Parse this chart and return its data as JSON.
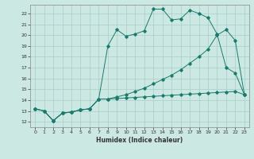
{
  "xlabel": "Humidex (Indice chaleur)",
  "background_color": "#cce8e2",
  "grid_color": "#aacccc",
  "line_color": "#1a7a6e",
  "xlim": [
    -0.5,
    23.5
  ],
  "ylim": [
    11.5,
    22.8
  ],
  "xticks": [
    0,
    1,
    2,
    3,
    4,
    5,
    6,
    7,
    8,
    9,
    10,
    11,
    12,
    13,
    14,
    15,
    16,
    17,
    18,
    19,
    20,
    21,
    22,
    23
  ],
  "yticks": [
    12,
    13,
    14,
    15,
    16,
    17,
    18,
    19,
    20,
    21,
    22
  ],
  "line1_x": [
    0,
    1,
    2,
    3,
    4,
    5,
    6,
    7,
    8,
    9,
    10,
    11,
    12,
    13,
    14,
    15,
    16,
    17,
    18,
    19,
    20,
    21,
    22,
    23
  ],
  "line1_y": [
    13.2,
    13.0,
    12.1,
    12.8,
    12.9,
    13.1,
    13.2,
    14.1,
    19.0,
    20.5,
    19.9,
    20.1,
    20.4,
    22.4,
    22.4,
    21.4,
    21.5,
    22.3,
    22.0,
    21.6,
    20.1,
    17.0,
    16.5,
    14.5
  ],
  "line2_x": [
    0,
    1,
    2,
    3,
    4,
    5,
    6,
    7,
    8,
    9,
    10,
    11,
    12,
    13,
    14,
    15,
    16,
    17,
    18,
    19,
    20,
    21,
    22,
    23
  ],
  "line2_y": [
    13.2,
    13.0,
    12.1,
    12.8,
    12.9,
    13.1,
    13.2,
    14.1,
    14.1,
    14.3,
    14.5,
    14.8,
    15.1,
    15.5,
    15.9,
    16.3,
    16.8,
    17.4,
    18.0,
    18.7,
    20.0,
    20.5,
    19.5,
    14.5
  ],
  "line3_x": [
    0,
    1,
    2,
    3,
    4,
    5,
    6,
    7,
    8,
    9,
    10,
    11,
    12,
    13,
    14,
    15,
    16,
    17,
    18,
    19,
    20,
    21,
    22,
    23
  ],
  "line3_y": [
    13.2,
    13.0,
    12.1,
    12.8,
    12.9,
    13.1,
    13.2,
    14.1,
    14.1,
    14.15,
    14.2,
    14.25,
    14.3,
    14.35,
    14.4,
    14.45,
    14.5,
    14.55,
    14.6,
    14.65,
    14.7,
    14.75,
    14.8,
    14.5
  ]
}
